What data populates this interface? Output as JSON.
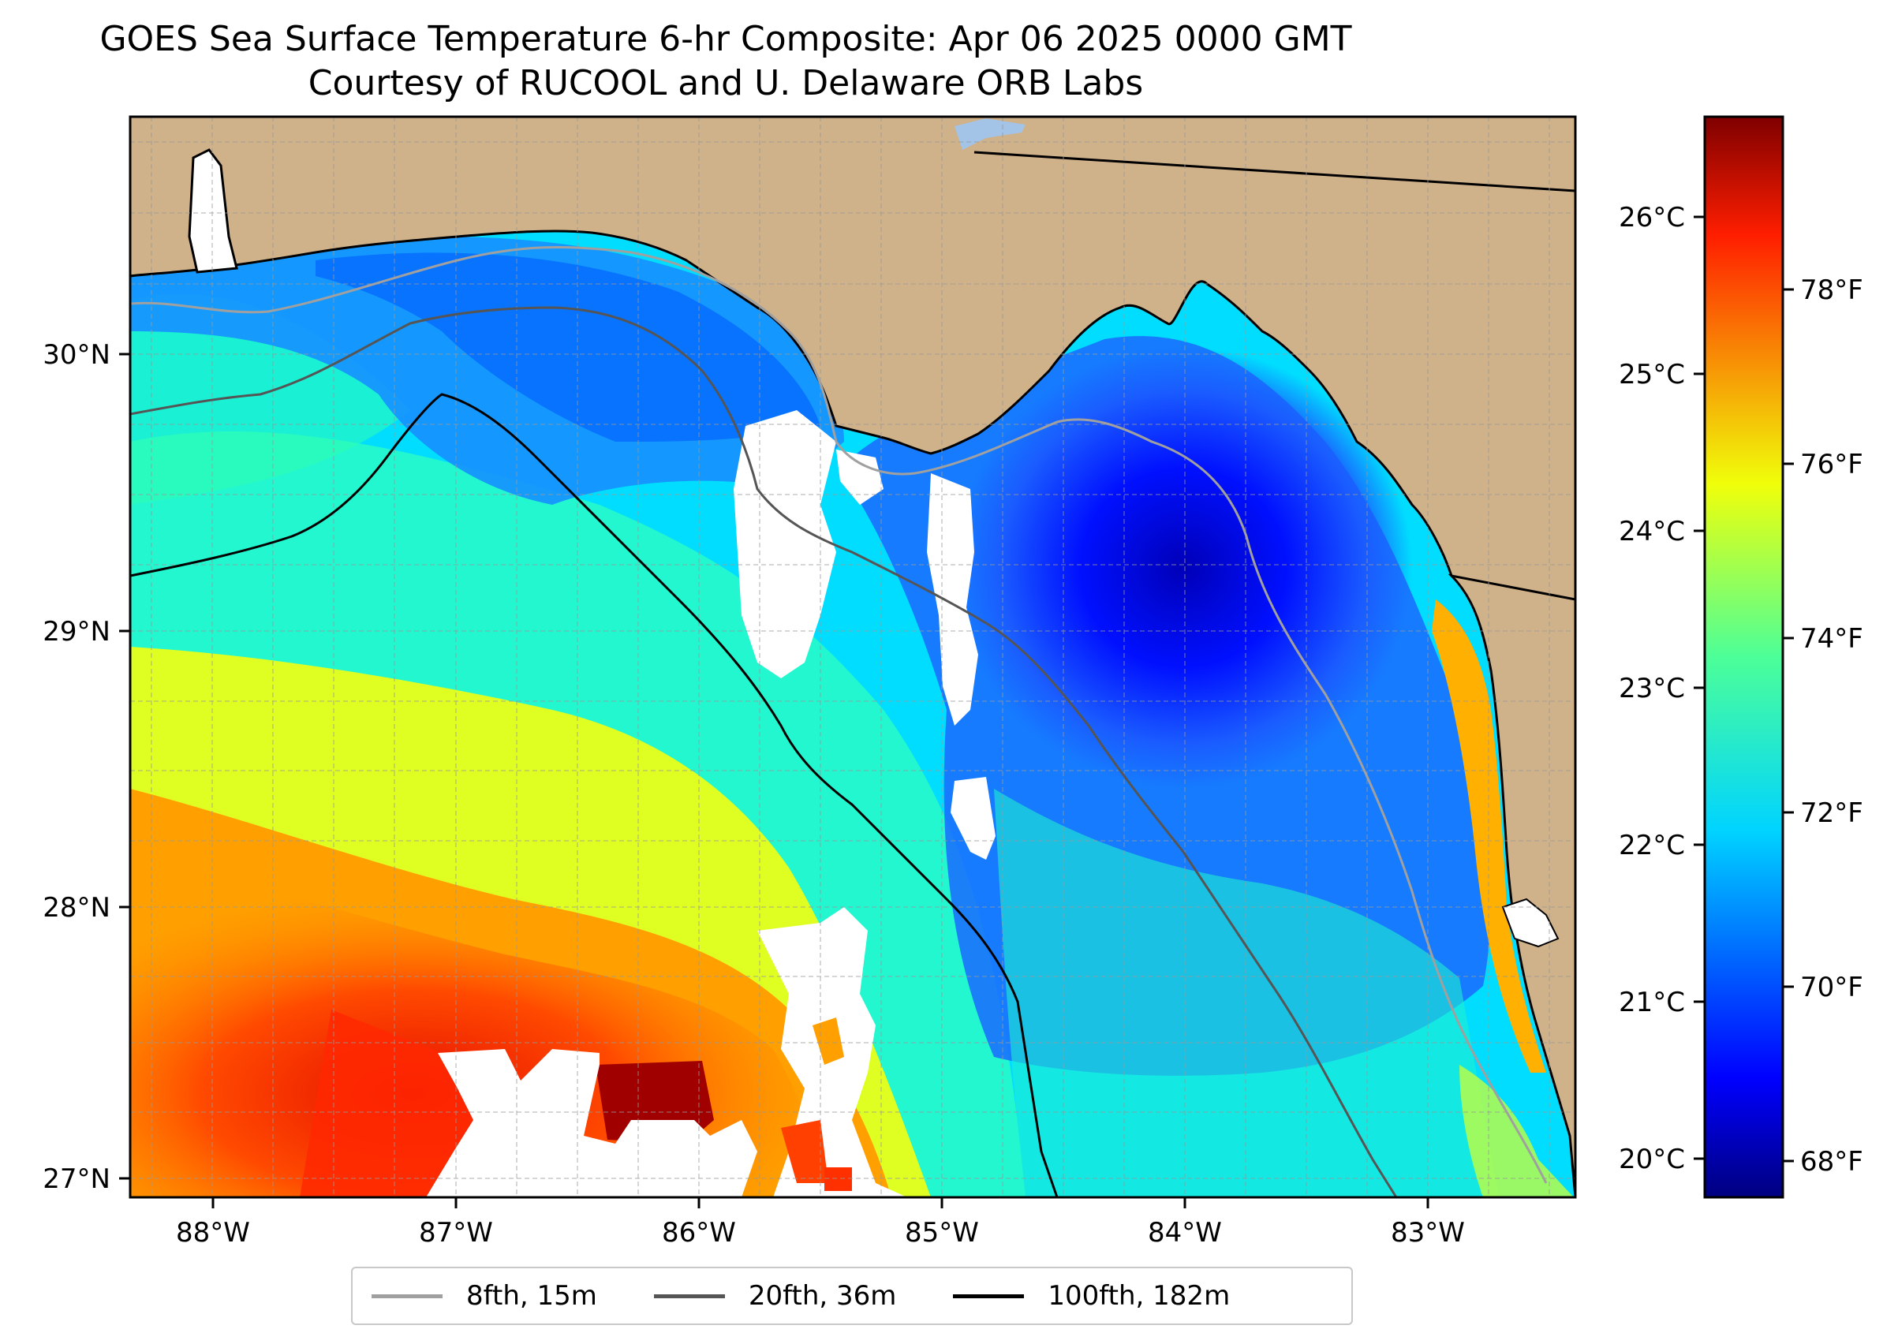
{
  "title": {
    "line1": "GOES Sea Surface Temperature 6-hr Composite: Apr 06 2025 0000 GMT",
    "line2": "Courtesy of RUCOOL and U. Delaware ORB Labs"
  },
  "map": {
    "lon_ticks": [
      "88°W",
      "87°W",
      "86°W",
      "85°W",
      "84°W",
      "83°W"
    ],
    "lat_ticks": [
      "30°N",
      "29°N",
      "28°N",
      "27°N"
    ],
    "colors": {
      "land": "#cfb18a",
      "coast": "#000000",
      "cloud": "#ffffff"
    }
  },
  "colorbar": {
    "celsius_ticks": [
      "26°C",
      "25°C",
      "24°C",
      "23°C",
      "22°C",
      "21°C",
      "20°C"
    ],
    "fahrenheit_ticks": [
      "78°F",
      "76°F",
      "74°F",
      "72°F",
      "70°F",
      "68°F"
    ],
    "colormap": "jet"
  },
  "legend": {
    "items": [
      {
        "label": "8fth, 15m",
        "color": "#a0a0a0"
      },
      {
        "label": "20fth, 36m",
        "color": "#555555"
      },
      {
        "label": "100fth, 182m",
        "color": "#000000"
      }
    ]
  }
}
